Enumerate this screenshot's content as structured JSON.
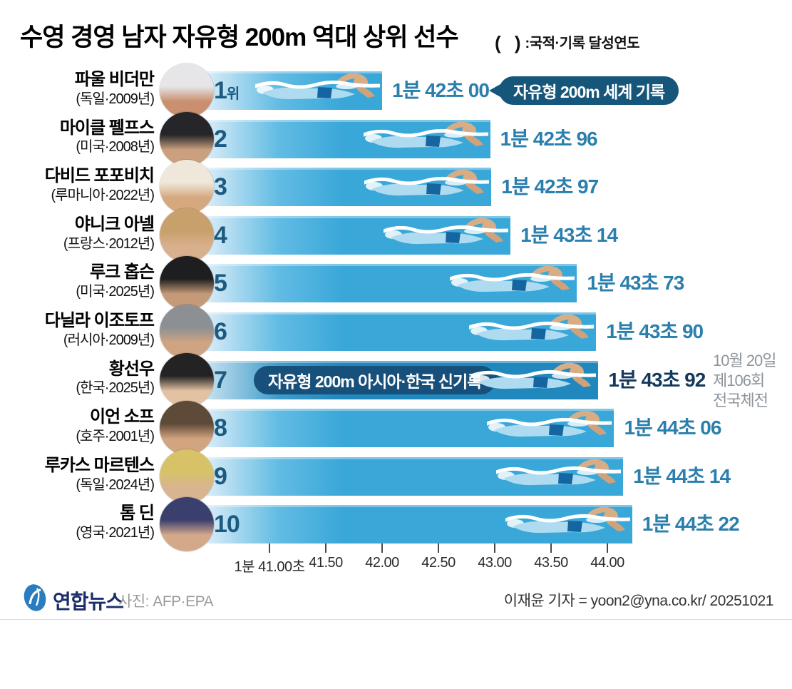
{
  "header": {
    "title": "수영 경영 남자 자유형 200m 역대 상위 선수",
    "legend_parens": "(  )",
    "legend_text": ":국적·기록 달성연도"
  },
  "chart_data": {
    "type": "bar",
    "title": "수영 경영 남자 자유형 200m 역대 상위 선수",
    "unit_note": "( ):국적·기록 달성연도",
    "orientation": "horizontal",
    "x_axis": {
      "unit": "분·초",
      "range": [
        40.3,
        44.6
      ],
      "ticks": [
        {
          "value": 41.0,
          "label": "1분 41.00초"
        },
        {
          "value": 41.5,
          "label": "41.50"
        },
        {
          "value": 42.0,
          "label": "42.00"
        },
        {
          "value": 42.5,
          "label": "42.50"
        },
        {
          "value": 43.0,
          "label": "43.00"
        },
        {
          "value": 43.5,
          "label": "43.50"
        },
        {
          "value": 44.0,
          "label": "44.00"
        }
      ]
    },
    "rows": [
      {
        "rank": "1",
        "rank_suffix": "위",
        "name": "파울 비더만",
        "country_year": "(독일·2009년)",
        "time_label": "1분 42초 00",
        "value": 42.0,
        "highlight": false,
        "callout_outside": "자유형 200m 세계 기록",
        "avatar": {
          "top": "#e6e6e8",
          "bottom": "#c98f6e"
        }
      },
      {
        "rank": "2",
        "rank_suffix": "",
        "name": "마이클 펠프스",
        "country_year": "(미국·2008년)",
        "time_label": "1분 42초 96",
        "value": 42.96,
        "highlight": false,
        "avatar": {
          "top": "#26262a",
          "bottom": "#caa07e"
        }
      },
      {
        "rank": "3",
        "rank_suffix": "",
        "name": "다비드 포포비치",
        "country_year": "(루마니아·2022년)",
        "time_label": "1분 42초 97",
        "value": 42.97,
        "highlight": false,
        "avatar": {
          "top": "#efe8da",
          "bottom": "#d6a87f"
        }
      },
      {
        "rank": "4",
        "rank_suffix": "",
        "name": "야니크 아넬",
        "country_year": "(프랑스·2012년)",
        "time_label": "1분 43초 14",
        "value": 43.14,
        "highlight": false,
        "avatar": {
          "top": "#c8a06b",
          "bottom": "#d9b08d"
        }
      },
      {
        "rank": "5",
        "rank_suffix": "",
        "name": "루크 홉슨",
        "country_year": "(미국·2025년)",
        "time_label": "1분 43초 73",
        "value": 43.73,
        "highlight": false,
        "avatar": {
          "top": "#1e1e20",
          "bottom": "#c59a78"
        }
      },
      {
        "rank": "6",
        "rank_suffix": "",
        "name": "다닐라 이조토프",
        "country_year": "(러시아·2009년)",
        "time_label": "1분 43초 90",
        "value": 43.9,
        "highlight": false,
        "avatar": {
          "top": "#8c8f93",
          "bottom": "#cfa483"
        }
      },
      {
        "rank": "7",
        "rank_suffix": "",
        "name": "황선우",
        "country_year": "(한국·2025년)",
        "time_label": "1분 43초 92",
        "value": 43.92,
        "highlight": true,
        "callout_inside": "자유형 200m 아시아·한국 신기록",
        "note_lines": [
          "10월 20일",
          "제106회",
          "전국체전"
        ],
        "avatar": {
          "top": "#232323",
          "bottom": "#e3c2a2"
        }
      },
      {
        "rank": "8",
        "rank_suffix": "",
        "name": "이언 소프",
        "country_year": "(호주·2001년)",
        "time_label": "1분 44초 06",
        "value": 44.06,
        "highlight": false,
        "avatar": {
          "top": "#5d4a38",
          "bottom": "#d2a47f"
        }
      },
      {
        "rank": "9",
        "rank_suffix": "",
        "name": "루카스 마르텐스",
        "country_year": "(독일·2024년)",
        "time_label": "1분 44초 14",
        "value": 44.14,
        "highlight": false,
        "avatar": {
          "top": "#d7c268",
          "bottom": "#d9b491"
        }
      },
      {
        "rank": "10",
        "rank_suffix": "",
        "name": "톰 딘",
        "country_year": "(영국·2021년)",
        "time_label": "1분 44초 22",
        "value": 44.22,
        "highlight": false,
        "avatar": {
          "top": "#3a3f6e",
          "bottom": "#d4a98a"
        }
      }
    ],
    "legend_position": "none",
    "grid": false
  },
  "colors": {
    "bar": "#3aa7d9",
    "bar_highlight": "#2088bd",
    "rank_text": "#1c5a80",
    "time_text": "#2b7fad",
    "time_text_highlight": "#14395c",
    "callout_bg": "#15567a",
    "note_gray": "#8e9499",
    "brand_navy": "#1b2e6b",
    "logo_blue": "#2a7cc0"
  },
  "footer": {
    "brand": "연합뉴스",
    "photo_credit": "사진: AFP·EPA",
    "byline": "이재윤 기자 = yoon2@yna.co.kr/ 20251021"
  }
}
